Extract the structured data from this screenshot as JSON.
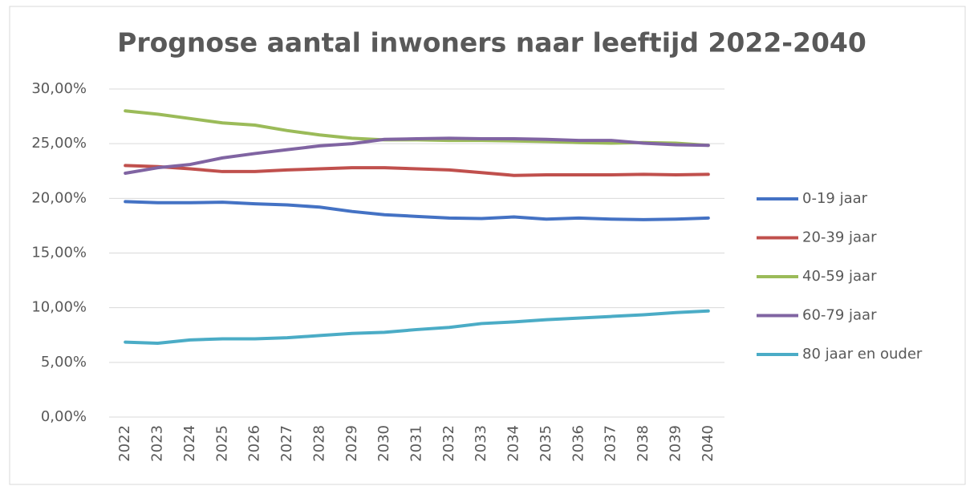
{
  "chart_data": {
    "type": "line",
    "title": "Prognose aantal inwoners naar leeftijd 2022-2040",
    "categories": [
      "2022",
      "2023",
      "2024",
      "2025",
      "2026",
      "2027",
      "2028",
      "2029",
      "2030",
      "2031",
      "2032",
      "2033",
      "2034",
      "2035",
      "2036",
      "2037",
      "2038",
      "2039",
      "2040"
    ],
    "series": [
      {
        "name": "0-19 jaar",
        "color": "#4472c4",
        "values": [
          19.7,
          19.6,
          19.6,
          19.65,
          19.5,
          19.4,
          19.2,
          18.8,
          18.5,
          18.35,
          18.2,
          18.15,
          18.3,
          18.1,
          18.2,
          18.1,
          18.05,
          18.1,
          18.2
        ]
      },
      {
        "name": "20-39 jaar",
        "color": "#c0504d",
        "values": [
          23.0,
          22.9,
          22.7,
          22.45,
          22.45,
          22.6,
          22.7,
          22.8,
          22.8,
          22.7,
          22.6,
          22.35,
          22.1,
          22.15,
          22.15,
          22.15,
          22.2,
          22.15,
          22.2
        ]
      },
      {
        "name": "40-59 jaar",
        "color": "#9bbb59",
        "values": [
          28.0,
          27.7,
          27.3,
          26.9,
          26.7,
          26.2,
          25.8,
          25.5,
          25.35,
          25.35,
          25.3,
          25.3,
          25.25,
          25.2,
          25.1,
          25.05,
          25.1,
          25.05,
          24.85
        ]
      },
      {
        "name": "60-79 jaar",
        "color": "#8064a2",
        "values": [
          22.3,
          22.8,
          23.1,
          23.7,
          24.1,
          24.45,
          24.8,
          25.0,
          25.4,
          25.45,
          25.5,
          25.45,
          25.45,
          25.4,
          25.3,
          25.3,
          25.05,
          24.9,
          24.85
        ]
      },
      {
        "name": "80 jaar en ouder",
        "color": "#4bacc6",
        "values": [
          6.85,
          6.75,
          7.05,
          7.15,
          7.15,
          7.25,
          7.45,
          7.65,
          7.75,
          8.0,
          8.2,
          8.55,
          8.7,
          8.9,
          9.05,
          9.2,
          9.35,
          9.55,
          9.7
        ]
      }
    ],
    "ylim": [
      0,
      30
    ],
    "yticks": [
      {
        "value": 0,
        "label": "0,00%"
      },
      {
        "value": 5,
        "label": "5,00%"
      },
      {
        "value": 10,
        "label": "10,00%"
      },
      {
        "value": 15,
        "label": "15,00%"
      },
      {
        "value": 20,
        "label": "20,00%"
      },
      {
        "value": 25,
        "label": "25,00%"
      },
      {
        "value": 30,
        "label": "30,00%"
      }
    ],
    "grid": true,
    "legend": "right"
  }
}
